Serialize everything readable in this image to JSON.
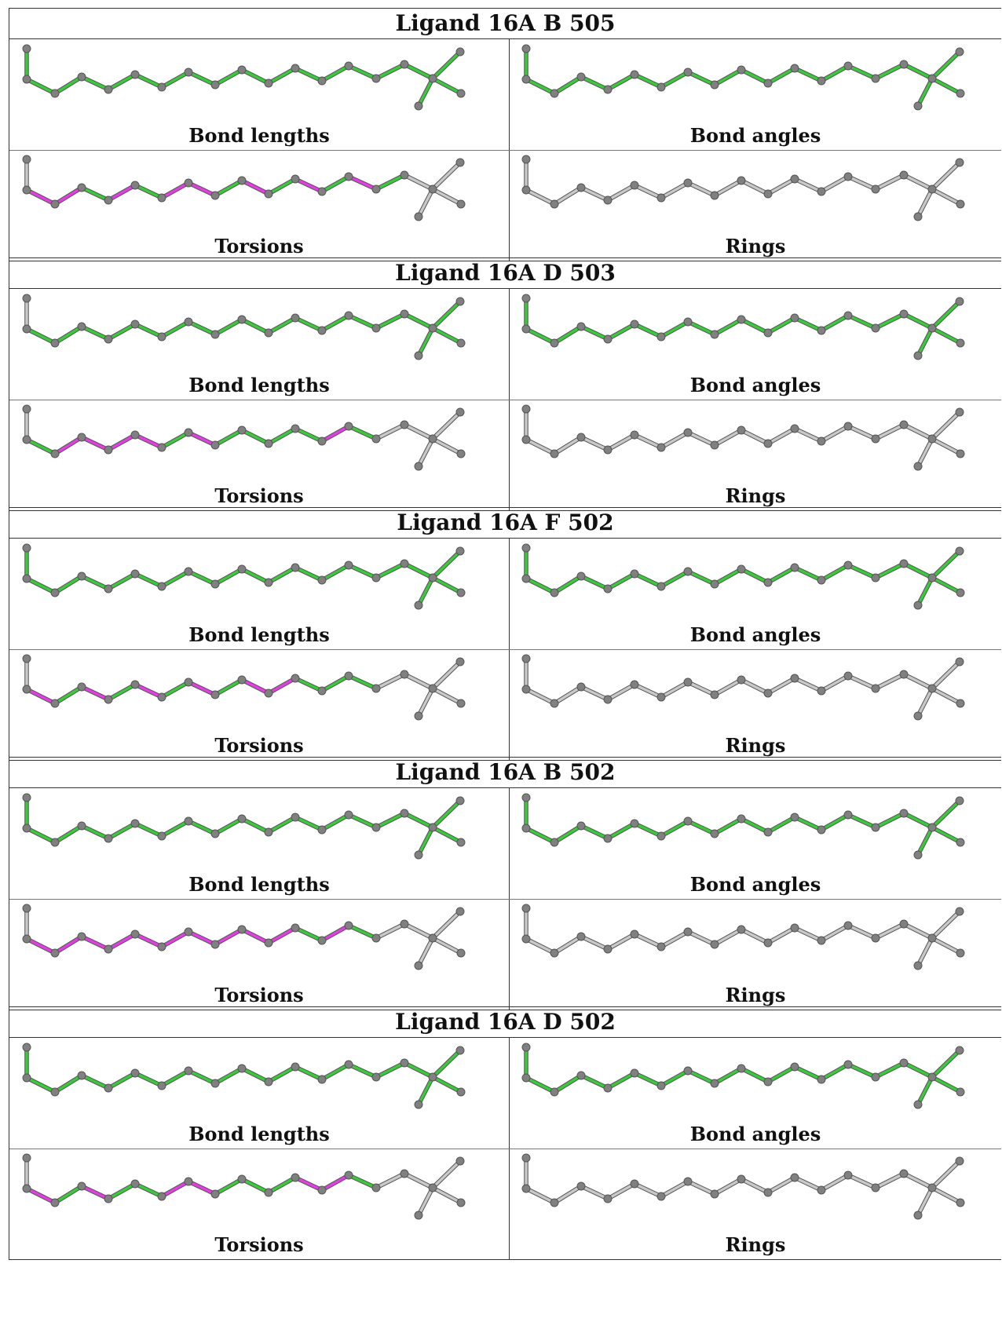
{
  "colors": {
    "ok": "#3cc83c",
    "flagged": "#e040e0",
    "neutral": "#c8c8c8",
    "atom": "#808080"
  },
  "ligands": [
    {
      "title": "Ligand 16A B 505",
      "panels": [
        {
          "label": "Bond lengths",
          "bonds": [
            "ok",
            "ok",
            "ok",
            "ok",
            "ok",
            "ok",
            "ok",
            "ok",
            "ok",
            "ok",
            "ok",
            "ok",
            "ok",
            "ok",
            "ok",
            "ok",
            "ok"
          ]
        },
        {
          "label": "Bond angles",
          "bonds": [
            "ok",
            "ok",
            "ok",
            "ok",
            "ok",
            "ok",
            "ok",
            "ok",
            "ok",
            "ok",
            "ok",
            "ok",
            "ok",
            "ok",
            "ok",
            "ok",
            "ok"
          ]
        },
        {
          "label": "Torsions",
          "bonds": [
            "neutral",
            "flagged",
            "flagged",
            "ok",
            "flagged",
            "ok",
            "flagged",
            "flagged",
            "ok",
            "flagged",
            "ok",
            "flagged",
            "ok",
            "flagged",
            "ok",
            "neutral",
            "neutral"
          ]
        },
        {
          "label": "Rings",
          "bonds": [
            "neutral",
            "neutral",
            "neutral",
            "neutral",
            "neutral",
            "neutral",
            "neutral",
            "neutral",
            "neutral",
            "neutral",
            "neutral",
            "neutral",
            "neutral",
            "neutral",
            "neutral",
            "neutral",
            "neutral"
          ]
        }
      ]
    },
    {
      "title": "Ligand 16A D 503",
      "panels": [
        {
          "label": "Bond lengths",
          "bonds": [
            "neutral",
            "ok",
            "ok",
            "ok",
            "ok",
            "ok",
            "ok",
            "ok",
            "ok",
            "ok",
            "ok",
            "ok",
            "ok",
            "ok",
            "ok",
            "ok",
            "ok"
          ]
        },
        {
          "label": "Bond angles",
          "bonds": [
            "ok",
            "ok",
            "ok",
            "ok",
            "ok",
            "ok",
            "ok",
            "ok",
            "ok",
            "ok",
            "ok",
            "ok",
            "ok",
            "ok",
            "ok",
            "ok",
            "ok"
          ]
        },
        {
          "label": "Torsions",
          "bonds": [
            "neutral",
            "ok",
            "flagged",
            "flagged",
            "flagged",
            "flagged",
            "ok",
            "flagged",
            "ok",
            "ok",
            "ok",
            "ok",
            "flagged",
            "ok",
            "neutral",
            "neutral",
            "neutral"
          ]
        },
        {
          "label": "Rings",
          "bonds": [
            "neutral",
            "neutral",
            "neutral",
            "neutral",
            "neutral",
            "neutral",
            "neutral",
            "neutral",
            "neutral",
            "neutral",
            "neutral",
            "neutral",
            "neutral",
            "neutral",
            "neutral",
            "neutral",
            "neutral"
          ]
        }
      ]
    },
    {
      "title": "Ligand 16A F 502",
      "panels": [
        {
          "label": "Bond lengths",
          "bonds": [
            "ok",
            "ok",
            "ok",
            "ok",
            "ok",
            "ok",
            "ok",
            "ok",
            "ok",
            "ok",
            "ok",
            "ok",
            "ok",
            "ok",
            "ok",
            "ok",
            "ok"
          ]
        },
        {
          "label": "Bond angles",
          "bonds": [
            "ok",
            "ok",
            "ok",
            "ok",
            "ok",
            "ok",
            "ok",
            "ok",
            "ok",
            "ok",
            "ok",
            "ok",
            "ok",
            "ok",
            "ok",
            "ok",
            "ok"
          ]
        },
        {
          "label": "Torsions",
          "bonds": [
            "neutral",
            "flagged",
            "ok",
            "flagged",
            "ok",
            "flagged",
            "ok",
            "flagged",
            "ok",
            "flagged",
            "flagged",
            "ok",
            "ok",
            "ok",
            "neutral",
            "neutral",
            "neutral"
          ]
        },
        {
          "label": "Rings",
          "bonds": [
            "neutral",
            "neutral",
            "neutral",
            "neutral",
            "neutral",
            "neutral",
            "neutral",
            "neutral",
            "neutral",
            "neutral",
            "neutral",
            "neutral",
            "neutral",
            "neutral",
            "neutral",
            "neutral",
            "neutral"
          ]
        }
      ]
    },
    {
      "title": "Ligand 16A B 502",
      "panels": [
        {
          "label": "Bond lengths",
          "bonds": [
            "ok",
            "ok",
            "ok",
            "ok",
            "ok",
            "ok",
            "ok",
            "ok",
            "ok",
            "ok",
            "ok",
            "ok",
            "ok",
            "ok",
            "ok",
            "ok",
            "ok"
          ]
        },
        {
          "label": "Bond angles",
          "bonds": [
            "ok",
            "ok",
            "ok",
            "ok",
            "ok",
            "ok",
            "ok",
            "ok",
            "ok",
            "ok",
            "ok",
            "ok",
            "ok",
            "ok",
            "ok",
            "ok",
            "ok"
          ]
        },
        {
          "label": "Torsions",
          "bonds": [
            "neutral",
            "flagged",
            "flagged",
            "flagged",
            "flagged",
            "flagged",
            "flagged",
            "flagged",
            "flagged",
            "flagged",
            "flagged",
            "ok",
            "flagged",
            "ok",
            "neutral",
            "neutral",
            "neutral"
          ]
        },
        {
          "label": "Rings",
          "bonds": [
            "neutral",
            "neutral",
            "neutral",
            "neutral",
            "neutral",
            "neutral",
            "neutral",
            "neutral",
            "neutral",
            "neutral",
            "neutral",
            "neutral",
            "neutral",
            "neutral",
            "neutral",
            "neutral",
            "neutral"
          ]
        }
      ]
    },
    {
      "title": "Ligand 16A D 502",
      "panels": [
        {
          "label": "Bond lengths",
          "bonds": [
            "ok",
            "ok",
            "ok",
            "ok",
            "ok",
            "ok",
            "ok",
            "ok",
            "ok",
            "ok",
            "ok",
            "ok",
            "ok",
            "ok",
            "ok",
            "ok",
            "ok"
          ]
        },
        {
          "label": "Bond angles",
          "bonds": [
            "ok",
            "ok",
            "ok",
            "ok",
            "ok",
            "ok",
            "ok",
            "ok",
            "ok",
            "ok",
            "ok",
            "ok",
            "ok",
            "ok",
            "ok",
            "ok",
            "ok"
          ]
        },
        {
          "label": "Torsions",
          "bonds": [
            "neutral",
            "flagged",
            "ok",
            "flagged",
            "ok",
            "ok",
            "flagged",
            "flagged",
            "ok",
            "ok",
            "ok",
            "flagged",
            "flagged",
            "ok",
            "neutral",
            "neutral",
            "neutral"
          ]
        },
        {
          "label": "Rings",
          "bonds": [
            "neutral",
            "neutral",
            "neutral",
            "neutral",
            "neutral",
            "neutral",
            "neutral",
            "neutral",
            "neutral",
            "neutral",
            "neutral",
            "neutral",
            "neutral",
            "neutral",
            "neutral",
            "neutral",
            "neutral"
          ]
        }
      ]
    }
  ]
}
